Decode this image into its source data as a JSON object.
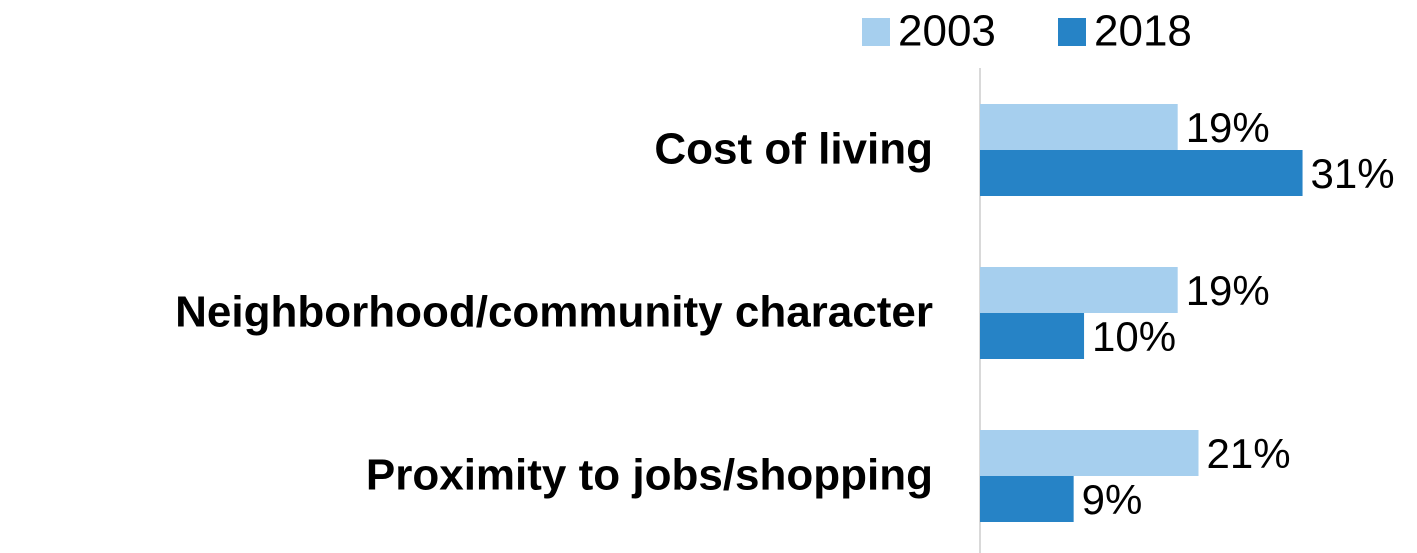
{
  "chart_data": {
    "type": "bar",
    "orientation": "horizontal",
    "categories": [
      "Cost of living",
      "Neighborhood/community character",
      "Proximity to jobs/shopping"
    ],
    "series": [
      {
        "name": "2003",
        "color": "#a6cfee",
        "values": [
          19,
          19,
          21
        ],
        "value_labels": [
          "19%",
          "19%",
          "21%"
        ]
      },
      {
        "name": "2018",
        "color": "#2683c6",
        "values": [
          31,
          10,
          9
        ],
        "value_labels": [
          "31%",
          "10%",
          "9%"
        ]
      }
    ],
    "xlim": [
      0,
      42
    ],
    "legend": "top-right"
  }
}
